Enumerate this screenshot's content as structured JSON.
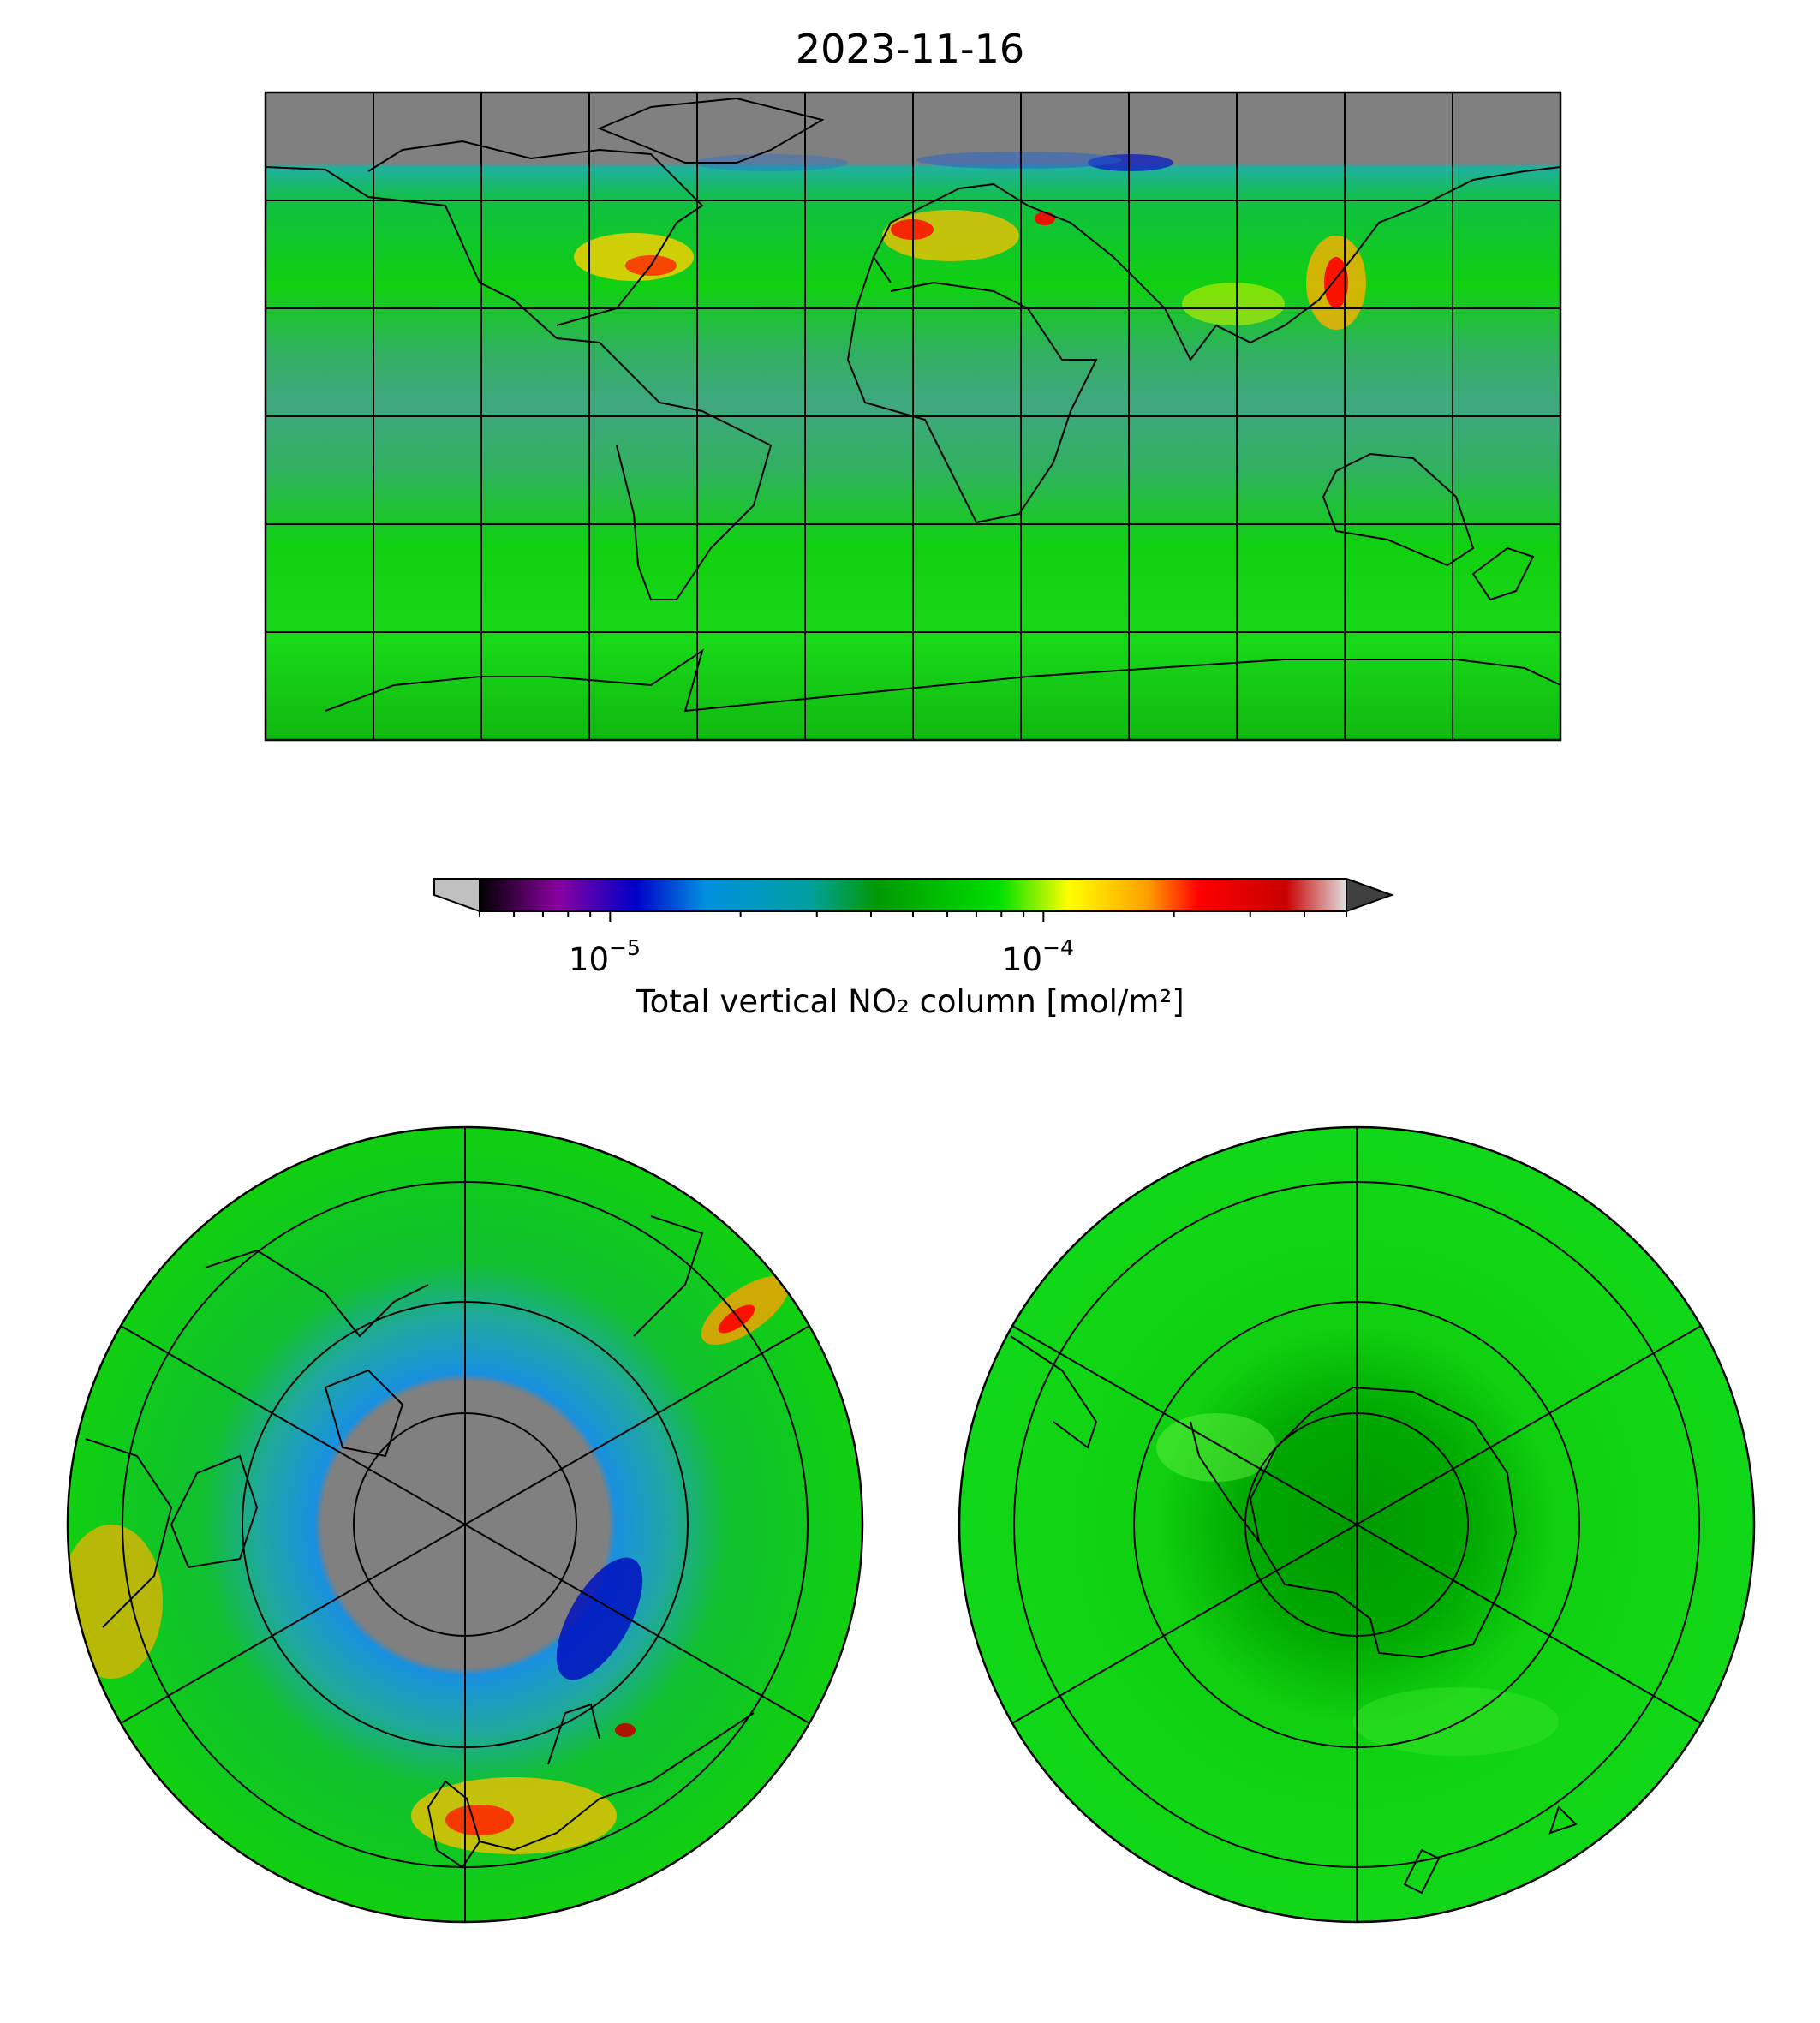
{
  "title": "2023-11-16",
  "colorbar": {
    "label": "Total vertical NO₂ column [mol/m²]",
    "scale": "log",
    "min": 5e-06,
    "max": 0.0005,
    "extend": "both",
    "major_ticks": [
      {
        "value": 1e-05,
        "base": "10",
        "exponent": "−5"
      },
      {
        "value": 0.0001,
        "base": "10",
        "exponent": "−4"
      }
    ],
    "colormap_stops": [
      "#000000",
      "#8a00a0",
      "#0000c8",
      "#0090e0",
      "#00a0a0",
      "#009a00",
      "#00e000",
      "#ffff00",
      "#ffa000",
      "#ff0000",
      "#c80000",
      "#e0e0e0"
    ],
    "under_color": "#c0c0c0",
    "over_color": "#404040"
  },
  "colors": {
    "no_data": "#808080",
    "background_field": "#10d010",
    "tropical_band": "#40b060",
    "coastline": "#000000",
    "gridline": "#000000"
  },
  "maps": [
    {
      "name": "global",
      "projection": "plate-carree",
      "graticule_lon_step_deg": 30,
      "graticule_lat_step_deg": 30
    },
    {
      "name": "north-polar",
      "projection": "orthographic-north-pole"
    },
    {
      "name": "south-polar",
      "projection": "orthographic-south-pole"
    }
  ]
}
